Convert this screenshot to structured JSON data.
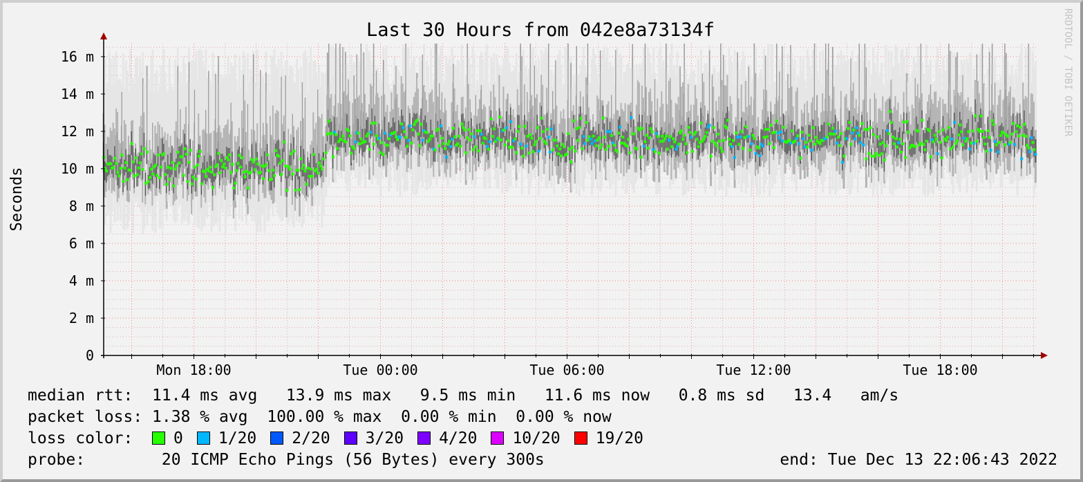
{
  "chart_data": {
    "type": "area",
    "title": "Last 30 Hours from 042e8a73134f",
    "ylabel": "Seconds",
    "watermark": "RRDTOOL / TOBI OETIKER",
    "ylim": [
      0,
      16.7
    ],
    "y_ticks": [
      {
        "value": 0,
        "label": "0"
      },
      {
        "value": 2,
        "label": "2 m"
      },
      {
        "value": 4,
        "label": "4 m"
      },
      {
        "value": 6,
        "label": "6 m"
      },
      {
        "value": 8,
        "label": "8 m"
      },
      {
        "value": 10,
        "label": "10 m"
      },
      {
        "value": 12,
        "label": "12 m"
      },
      {
        "value": 14,
        "label": "14 m"
      },
      {
        "value": 16,
        "label": "16 m"
      }
    ],
    "x_range_hours": [
      15.1,
      22.11
    ],
    "x_range_span_hours": 30,
    "x_ticks": [
      {
        "hour": 18,
        "label": "Mon 18:00"
      },
      {
        "hour": 24,
        "label": "Tue 00:00"
      },
      {
        "hour": 30,
        "label": "Tue 06:00"
      },
      {
        "hour": 36,
        "label": "Tue 12:00"
      },
      {
        "hour": 42,
        "label": "Tue 18:00"
      }
    ],
    "grid": true,
    "series": [
      {
        "name": "median rtt",
        "segments": [
          {
            "start_hour": 15.1,
            "end_hour": 22.2,
            "median_level": 10.1,
            "spread_low": 6.5,
            "spread_high": 16.5
          },
          {
            "start_hour": 22.25,
            "end_hour": 45.1,
            "median_level": 11.6,
            "spread_low": 8.5,
            "spread_high": 16.7
          }
        ]
      }
    ]
  },
  "legend": {
    "median_rtt": {
      "label": "median rtt:",
      "avg": "11.4 ms avg",
      "max": "13.9 ms max",
      "min": "9.5 ms min",
      "now": "11.6 ms now",
      "sd": "0.8 ms sd",
      "am": "13.4   am/s"
    },
    "packet_loss": {
      "label": "packet loss:",
      "avg": "1.38 % avg",
      "max": "100.00 % max",
      "min": "0.00 % min",
      "now": "0.00 % now"
    },
    "loss_color": {
      "label": "loss color:",
      "items": [
        {
          "label": "0",
          "color": "#26ff00"
        },
        {
          "label": "1/20",
          "color": "#00b8ff"
        },
        {
          "label": "2/20",
          "color": "#0059ff"
        },
        {
          "label": "3/20",
          "color": "#5e00ff"
        },
        {
          "label": "4/20",
          "color": "#7e00ff"
        },
        {
          "label": "10/20",
          "color": "#dd00ff"
        },
        {
          "label": "19/20",
          "color": "#ff0000"
        }
      ]
    },
    "probe": {
      "label": "probe:",
      "text": "20 ICMP Echo Pings (56 Bytes) every 300s",
      "end": "end: Tue Dec 13 22:06:43 2022"
    }
  },
  "colors": {
    "grid_major": "#ff8080",
    "grid_minor": "#e0b0b0",
    "axis": "#000000",
    "arrow": "#a00000"
  }
}
